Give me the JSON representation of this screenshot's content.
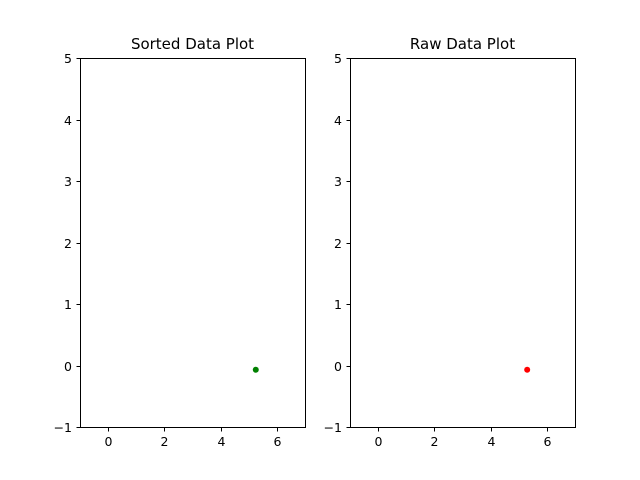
{
  "chart_data": [
    {
      "type": "scatter",
      "title": "Sorted Data Plot",
      "xlabel": "",
      "ylabel": "",
      "xlim": [
        -1,
        7
      ],
      "ylim": [
        -1,
        5
      ],
      "xticks": [
        0,
        2,
        4,
        6
      ],
      "yticks": [
        -1,
        0,
        1,
        2,
        3,
        4,
        5
      ],
      "xtick_labels": [
        "0",
        "2",
        "4",
        "6"
      ],
      "ytick_labels": [
        "−1",
        "0",
        "1",
        "2",
        "3",
        "4",
        "5"
      ],
      "grid": false,
      "series": [
        {
          "color": "#008000",
          "points": [
            {
              "x": 5.25,
              "y": -0.07
            }
          ]
        }
      ]
    },
    {
      "type": "scatter",
      "title": "Raw Data Plot",
      "xlabel": "",
      "ylabel": "",
      "xlim": [
        -1,
        7
      ],
      "ylim": [
        -1,
        5
      ],
      "xticks": [
        0,
        2,
        4,
        6
      ],
      "yticks": [
        -1,
        0,
        1,
        2,
        3,
        4,
        5
      ],
      "xtick_labels": [
        "0",
        "2",
        "4",
        "6"
      ],
      "ytick_labels": [
        "−1",
        "0",
        "1",
        "2",
        "3",
        "4",
        "5"
      ],
      "grid": false,
      "series": [
        {
          "color": "#ff0000",
          "points": [
            {
              "x": 5.3,
              "y": -0.07
            }
          ]
        }
      ]
    }
  ]
}
